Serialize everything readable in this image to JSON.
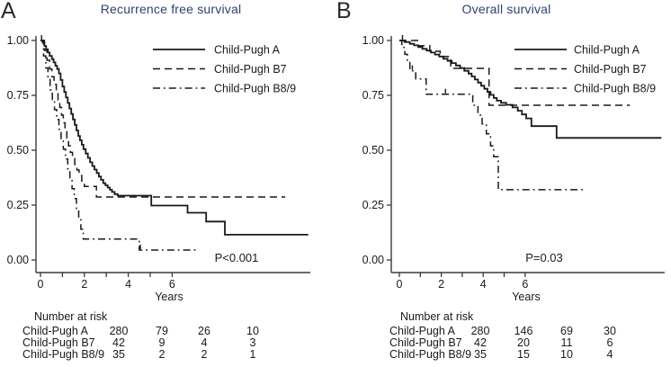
{
  "panels": [
    {
      "letter": "A",
      "title": "Recurrence free survival",
      "p_label": "P<0.001",
      "xlabel": "Years",
      "risk_table": {
        "header": "Number at risk",
        "rows": [
          {
            "label": "Child-Pugh A",
            "values": [
              "280",
              "79",
              "26",
              "10"
            ]
          },
          {
            "label": "Child-Pugh B7",
            "values": [
              "42",
              "9",
              "4",
              "3"
            ]
          },
          {
            "label": "Child-Pugh B8/9",
            "values": [
              "35",
              "2",
              "2",
              "1"
            ]
          }
        ]
      }
    },
    {
      "letter": "B",
      "title": "Overall survival",
      "p_label": "P=0.03",
      "xlabel": "Years",
      "risk_table": {
        "header": "Number at risk",
        "rows": [
          {
            "label": "Child-Pugh A",
            "values": [
              "280",
              "146",
              "69",
              "30"
            ]
          },
          {
            "label": "Child-Pugh B7",
            "values": [
              "42",
              "20",
              "11",
              "6"
            ]
          },
          {
            "label": "Child-Pugh B8/9",
            "values": [
              "35",
              "15",
              "10",
              "4"
            ]
          }
        ]
      }
    }
  ],
  "colors": {
    "title": "#2e4172",
    "line": "#191919",
    "axis": "#3a3a3a",
    "text": "#1a1a1a"
  },
  "chart_data": [
    {
      "type": "line",
      "subtype": "kaplan-meier",
      "title": "Recurrence free survival",
      "xlabel": "Years",
      "ylabel": "",
      "xlim": [
        0,
        12.4
      ],
      "ylim": [
        0,
        1.0
      ],
      "x_ticks": [
        0,
        1,
        2,
        3,
        4,
        5,
        6
      ],
      "x_tick_labels": [
        "0",
        "",
        "2",
        "",
        "4",
        "",
        "6"
      ],
      "y_ticks": [
        0,
        0.25,
        0.5,
        0.75,
        1.0
      ],
      "y_tick_labels": [
        "0.00",
        "0.25",
        "0.50",
        "0.75",
        "1.00"
      ],
      "annotation": "P<0.001",
      "legend_position": "upper right",
      "grid": false,
      "series": [
        {
          "name": "Child-Pugh A",
          "line_style": "solid",
          "end": 12.2,
          "censors": [
            [
              0.05,
              1.0
            ]
          ],
          "points": [
            [
              0,
              1.0
            ],
            [
              0.1,
              0.99
            ],
            [
              0.18,
              0.975
            ],
            [
              0.26,
              0.96
            ],
            [
              0.34,
              0.945
            ],
            [
              0.42,
              0.93
            ],
            [
              0.52,
              0.915
            ],
            [
              0.6,
              0.9
            ],
            [
              0.68,
              0.885
            ],
            [
              0.76,
              0.87
            ],
            [
              0.84,
              0.85
            ],
            [
              0.92,
              0.82
            ],
            [
              1.0,
              0.79
            ],
            [
              1.08,
              0.765
            ],
            [
              1.16,
              0.74
            ],
            [
              1.24,
              0.715
            ],
            [
              1.32,
              0.69
            ],
            [
              1.4,
              0.665
            ],
            [
              1.48,
              0.64
            ],
            [
              1.56,
              0.615
            ],
            [
              1.64,
              0.59
            ],
            [
              1.72,
              0.565
            ],
            [
              1.8,
              0.545
            ],
            [
              1.88,
              0.525
            ],
            [
              1.96,
              0.505
            ],
            [
              2.06,
              0.485
            ],
            [
              2.16,
              0.465
            ],
            [
              2.26,
              0.445
            ],
            [
              2.36,
              0.428
            ],
            [
              2.46,
              0.412
            ],
            [
              2.56,
              0.396
            ],
            [
              2.66,
              0.38
            ],
            [
              2.76,
              0.365
            ],
            [
              2.86,
              0.35
            ],
            [
              2.96,
              0.34
            ],
            [
              3.06,
              0.33
            ],
            [
              3.16,
              0.32
            ],
            [
              3.26,
              0.31
            ],
            [
              3.38,
              0.3
            ],
            [
              3.52,
              0.293
            ],
            [
              5.05,
              0.248
            ],
            [
              6.7,
              0.215
            ],
            [
              7.55,
              0.175
            ],
            [
              8.4,
              0.115
            ]
          ]
        },
        {
          "name": "Child-Pugh B7",
          "line_style": "dashed",
          "end": 11.15,
          "censors": [],
          "points": [
            [
              0,
              1.0
            ],
            [
              0.18,
              0.955
            ],
            [
              0.3,
              0.91
            ],
            [
              0.42,
              0.87
            ],
            [
              0.52,
              0.835
            ],
            [
              0.62,
              0.8
            ],
            [
              0.72,
              0.765
            ],
            [
              0.8,
              0.73
            ],
            [
              0.88,
              0.695
            ],
            [
              0.96,
              0.66
            ],
            [
              1.04,
              0.625
            ],
            [
              1.12,
              0.59
            ],
            [
              1.2,
              0.555
            ],
            [
              1.28,
              0.52
            ],
            [
              1.36,
              0.49
            ],
            [
              1.46,
              0.462
            ],
            [
              1.56,
              0.435
            ],
            [
              1.66,
              0.41
            ],
            [
              1.76,
              0.385
            ],
            [
              1.88,
              0.36
            ],
            [
              2.0,
              0.335
            ],
            [
              2.55,
              0.287
            ]
          ]
        },
        {
          "name": "Child-Pugh B8/9",
          "line_style": "dashdot",
          "end": 7.1,
          "censors": [
            [
              4.55,
              0.045
            ]
          ],
          "points": [
            [
              0,
              1.0
            ],
            [
              0.14,
              0.93
            ],
            [
              0.24,
              0.875
            ],
            [
              0.34,
              0.825
            ],
            [
              0.44,
              0.775
            ],
            [
              0.54,
              0.73
            ],
            [
              0.64,
              0.685
            ],
            [
              0.74,
              0.64
            ],
            [
              0.84,
              0.595
            ],
            [
              0.94,
              0.55
            ],
            [
              1.04,
              0.505
            ],
            [
              1.14,
              0.46
            ],
            [
              1.24,
              0.415
            ],
            [
              1.34,
              0.37
            ],
            [
              1.44,
              0.325
            ],
            [
              1.54,
              0.28
            ],
            [
              1.64,
              0.235
            ],
            [
              1.74,
              0.19
            ],
            [
              1.84,
              0.14
            ],
            [
              1.95,
              0.095
            ],
            [
              4.5,
              0.045
            ]
          ]
        }
      ],
      "number_at_risk_times": [
        0,
        2,
        4,
        6
      ]
    },
    {
      "type": "line",
      "subtype": "kaplan-meier",
      "title": "Overall survival",
      "xlabel": "Years",
      "ylabel": "",
      "xlim": [
        0,
        12.6
      ],
      "ylim": [
        0,
        1.0
      ],
      "x_ticks": [
        0,
        1,
        2,
        3,
        4,
        5,
        6
      ],
      "x_tick_labels": [
        "0",
        "",
        "2",
        "",
        "4",
        "",
        "6"
      ],
      "y_ticks": [
        0,
        0.25,
        0.5,
        0.75,
        1.0
      ],
      "y_tick_labels": [
        "0.00",
        "0.25",
        "0.50",
        "0.75",
        "1.00"
      ],
      "annotation": "P=0.03",
      "legend_position": "upper right",
      "grid": false,
      "series": [
        {
          "name": "Child-Pugh A",
          "line_style": "solid",
          "end": 12.5,
          "censors": [
            [
              0.15,
              1.0
            ]
          ],
          "points": [
            [
              0,
              1.0
            ],
            [
              0.25,
              0.993
            ],
            [
              0.5,
              0.985
            ],
            [
              0.7,
              0.978
            ],
            [
              0.9,
              0.97
            ],
            [
              1.1,
              0.962
            ],
            [
              1.3,
              0.954
            ],
            [
              1.5,
              0.945
            ],
            [
              1.7,
              0.936
            ],
            [
              1.9,
              0.927
            ],
            [
              2.1,
              0.917
            ],
            [
              2.3,
              0.907
            ],
            [
              2.5,
              0.897
            ],
            [
              2.7,
              0.886
            ],
            [
              2.9,
              0.874
            ],
            [
              3.1,
              0.862
            ],
            [
              3.3,
              0.849
            ],
            [
              3.45,
              0.836
            ],
            [
              3.6,
              0.822
            ],
            [
              3.75,
              0.808
            ],
            [
              3.9,
              0.794
            ],
            [
              4.05,
              0.78
            ],
            [
              4.2,
              0.766
            ],
            [
              4.35,
              0.752
            ],
            [
              4.5,
              0.738
            ],
            [
              4.65,
              0.726
            ],
            [
              4.85,
              0.716
            ],
            [
              5.1,
              0.707
            ],
            [
              5.4,
              0.695
            ],
            [
              5.65,
              0.68
            ],
            [
              5.85,
              0.663
            ],
            [
              6.05,
              0.645
            ],
            [
              6.3,
              0.61
            ],
            [
              7.5,
              0.556
            ]
          ]
        },
        {
          "name": "Child-Pugh B7",
          "line_style": "dashed",
          "end": 11.0,
          "censors": [],
          "points": [
            [
              0,
              1.0
            ],
            [
              0.9,
              0.976
            ],
            [
              1.45,
              0.951
            ],
            [
              1.95,
              0.927
            ],
            [
              2.45,
              0.873
            ],
            [
              4.28,
              0.705
            ]
          ]
        },
        {
          "name": "Child-Pugh B8/9",
          "line_style": "dashdot",
          "end": 8.9,
          "censors": [
            [
              0.62,
              0.862
            ],
            [
              2.2,
              0.755
            ]
          ],
          "points": [
            [
              0,
              1.0
            ],
            [
              0.12,
              0.968
            ],
            [
              0.26,
              0.937
            ],
            [
              0.38,
              0.9
            ],
            [
              0.5,
              0.862
            ],
            [
              0.78,
              0.825
            ],
            [
              1.28,
              0.755
            ],
            [
              3.5,
              0.705
            ],
            [
              3.75,
              0.66
            ],
            [
              3.95,
              0.62
            ],
            [
              4.15,
              0.575
            ],
            [
              4.35,
              0.52
            ],
            [
              4.5,
              0.47
            ],
            [
              4.72,
              0.32
            ]
          ]
        }
      ],
      "number_at_risk_times": [
        0,
        2,
        4,
        6
      ]
    }
  ]
}
